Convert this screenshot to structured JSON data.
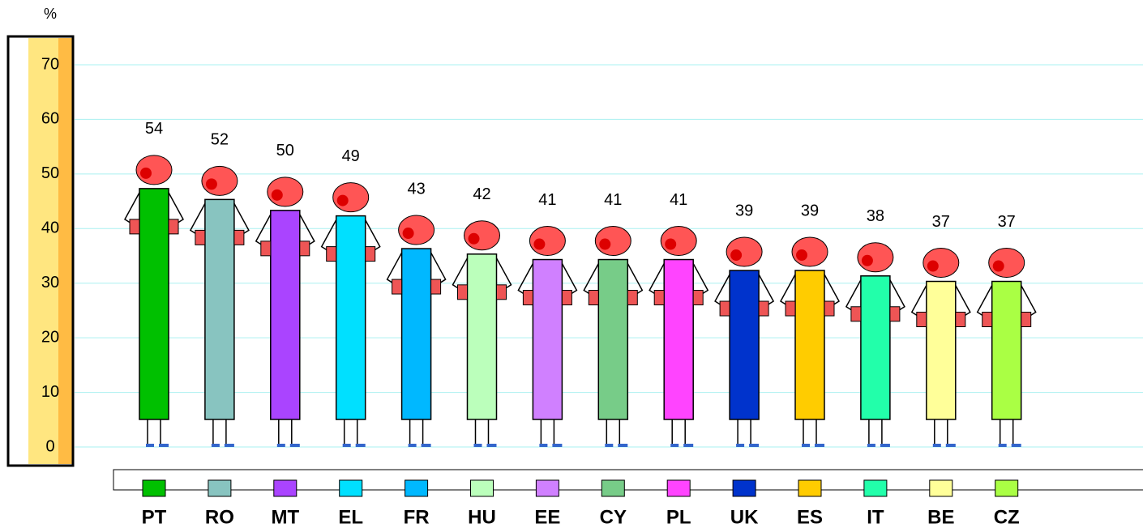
{
  "chart_data": {
    "type": "bar",
    "unit": "%",
    "categories": [
      "PT",
      "RO",
      "MT",
      "EL",
      "FR",
      "HU",
      "EE",
      "CY",
      "PL",
      "UK",
      "ES",
      "IT",
      "BE",
      "CZ"
    ],
    "values": [
      54,
      52,
      50,
      49,
      43,
      42,
      41,
      41,
      41,
      39,
      39,
      38,
      37,
      37
    ],
    "colors": [
      "#00c000",
      "#88c4c0",
      "#aa44ff",
      "#00e0ff",
      "#00b8ff",
      "#bbffbb",
      "#d080ff",
      "#77cc88",
      "#ff44ff",
      "#0033cc",
      "#ffcc00",
      "#22ffaa",
      "#ffff99",
      "#aaff44"
    ],
    "ylim": [
      0,
      70
    ],
    "yticks": [
      0,
      10,
      20,
      30,
      40,
      50,
      60,
      70
    ],
    "grid": true
  }
}
